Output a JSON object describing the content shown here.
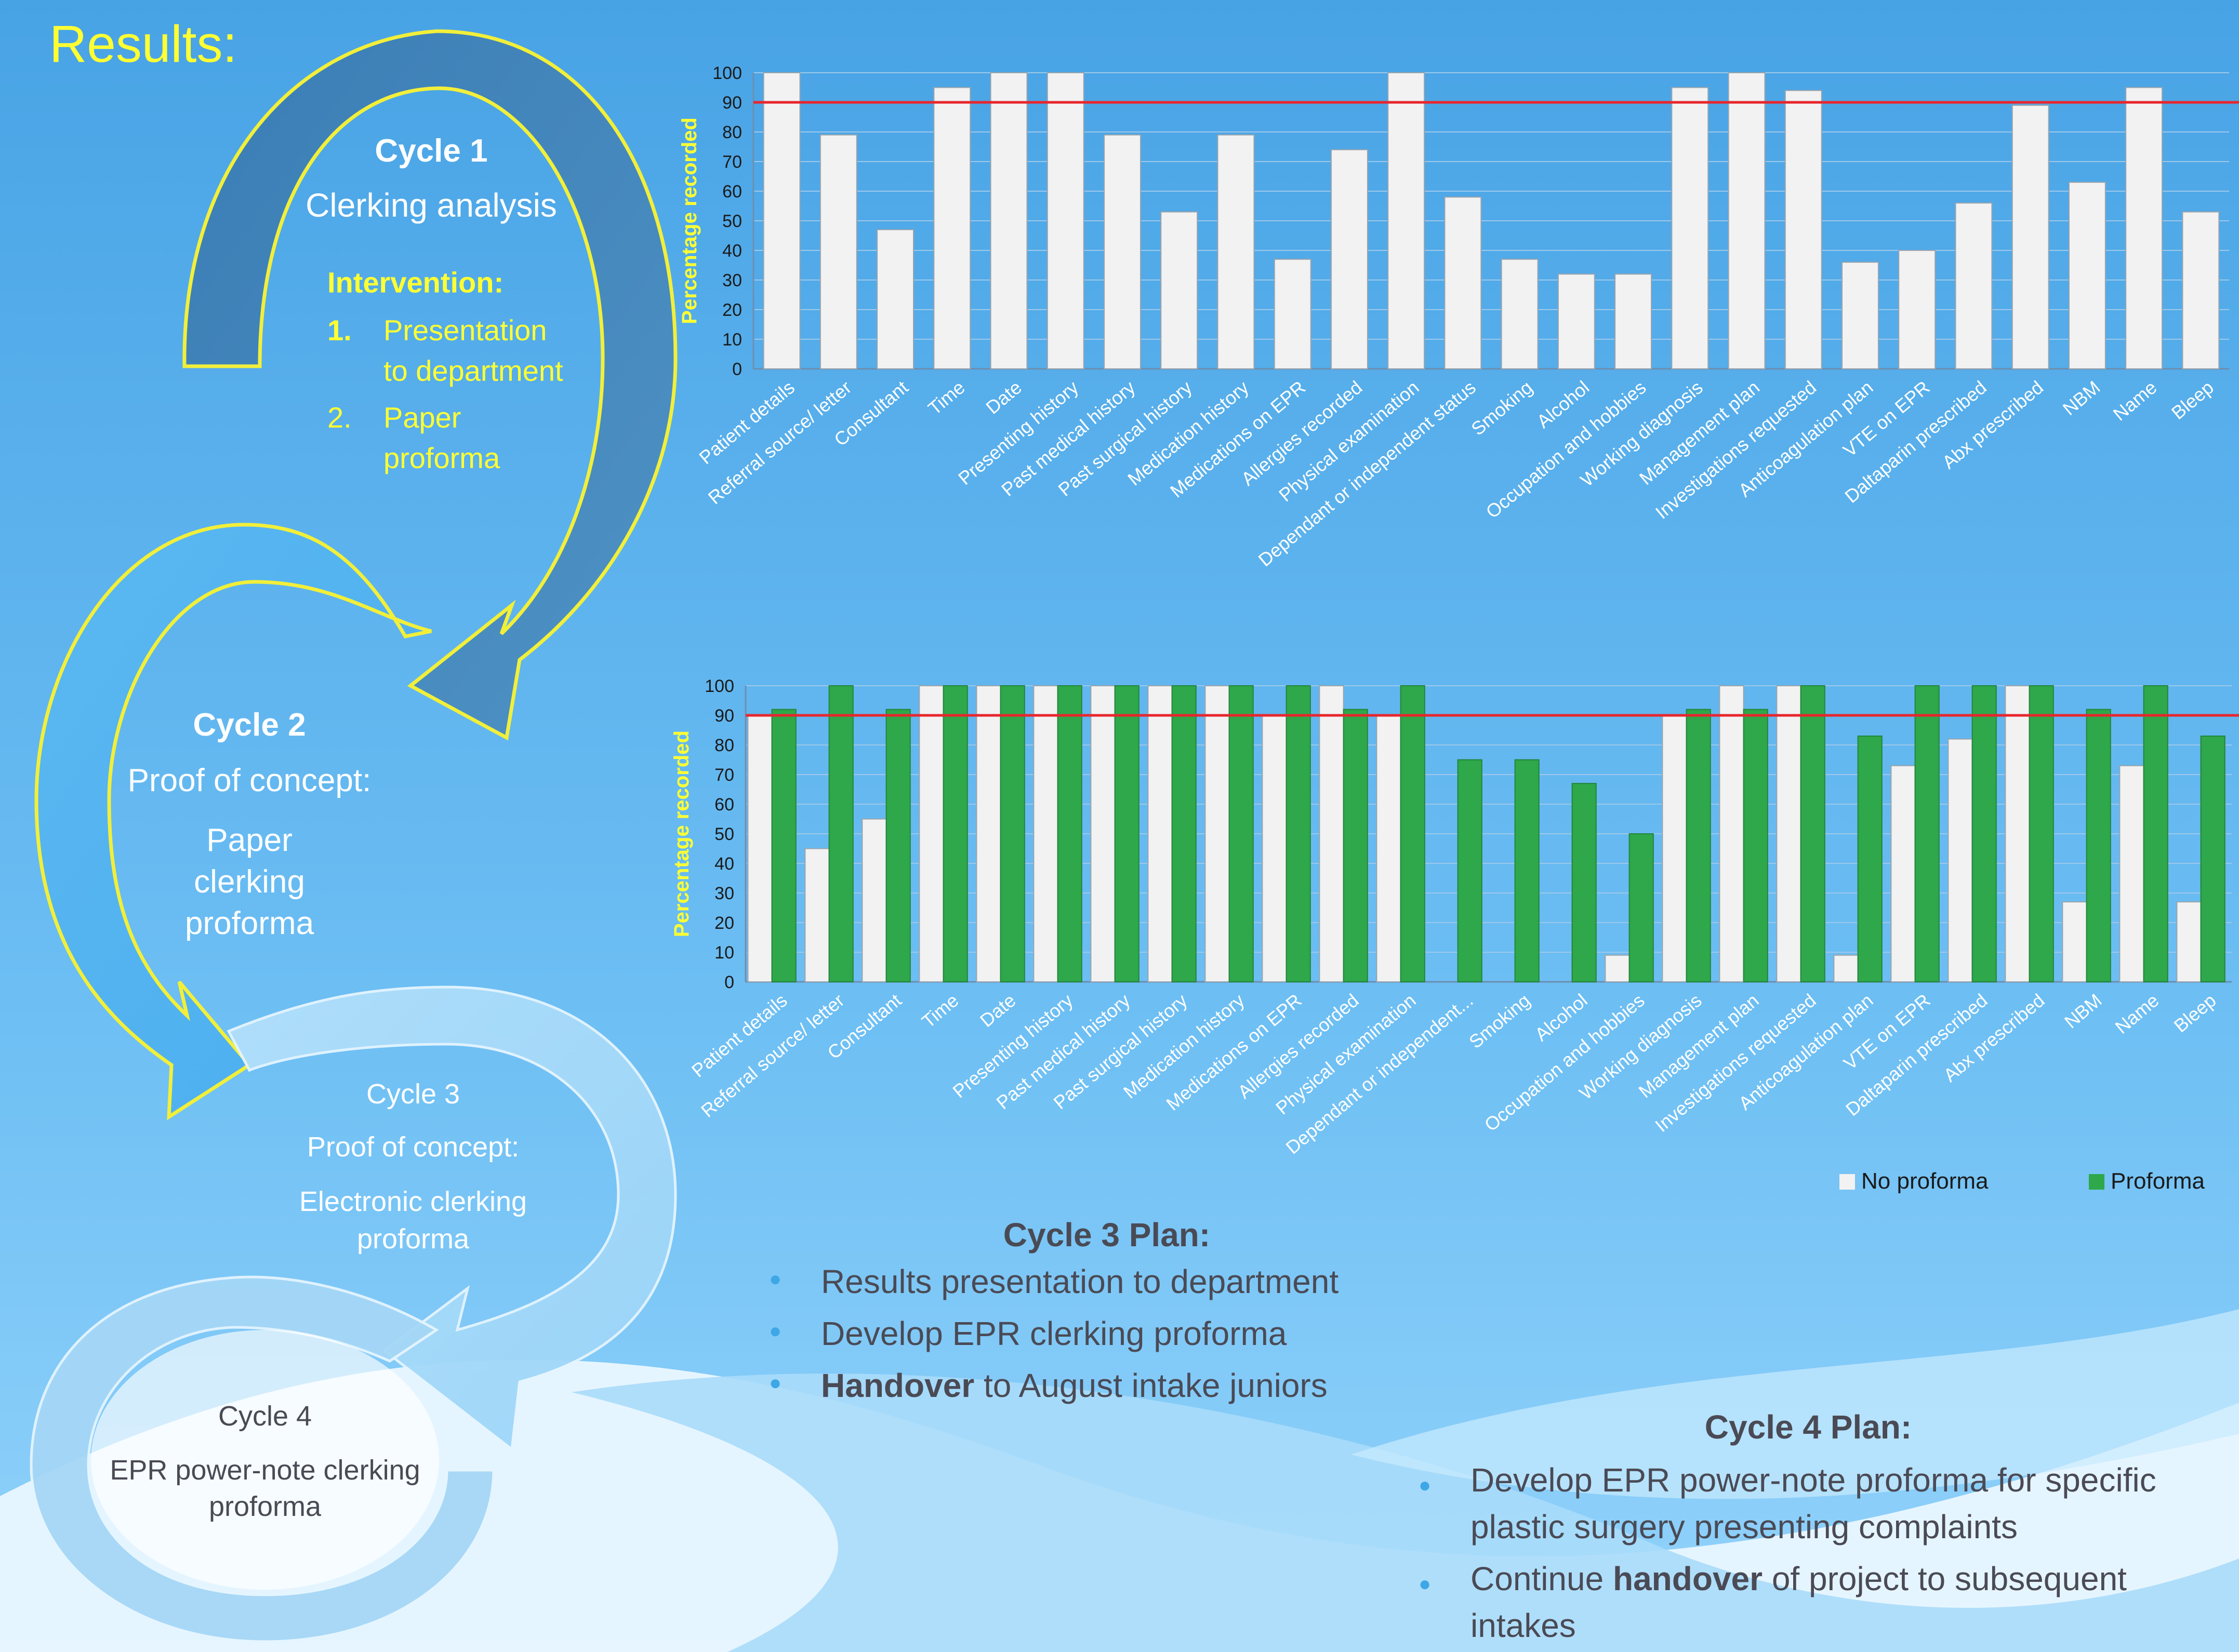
{
  "page": {
    "title": "Results:",
    "colors": {
      "bg_top": "#48a3e5",
      "bg_bottom": "#8fd0fb",
      "yellow": "#ffff33",
      "target_line": "#e8262d",
      "proforma_green": "#2ea84a",
      "bar_white": "#f2f2f2"
    }
  },
  "cycles": {
    "c1": {
      "heading": "Cycle 1",
      "sub": "Clerking analysis",
      "intervention_heading": "Intervention:",
      "items": [
        {
          "num": "1.",
          "text": "Presentation to department"
        },
        {
          "num": "2.",
          "text": "Paper proforma"
        }
      ]
    },
    "c2": {
      "heading": "Cycle 2",
      "line1": "Proof of concept:",
      "line2": "Paper clerking proforma"
    },
    "c3": {
      "heading": "Cycle 3",
      "line1": "Proof of concept:",
      "line2": "Electronic clerking proforma"
    },
    "c4": {
      "heading": "Cycle 4",
      "line1": "EPR power-note clerking proforma"
    }
  },
  "chart_data": [
    {
      "type": "bar",
      "ylabel": "Percentage recorded",
      "ylim": [
        0,
        100
      ],
      "yticks": [
        "0",
        "10",
        "20",
        "30",
        "40",
        "50",
        "60",
        "70",
        "80",
        "90",
        "100"
      ],
      "target_line": 90,
      "categories": [
        "Patient details",
        "Referral source/ letter",
        "Consultant",
        "Time",
        "Date",
        "Presenting history",
        "Past medical history",
        "Past surgical history",
        "Medication history",
        "Medications on EPR",
        "Allergies recorded",
        "Physical examination",
        "Dependant or independent status",
        "Smoking",
        "Alcohol",
        "Occupation and hobbies",
        "Working diagnosis",
        "Management plan",
        "Investigations requested",
        "Anticoagulation plan",
        "VTE on EPR",
        "Daltaparin prescribed",
        "Abx prescribed",
        "NBM",
        "Name",
        "Bleep"
      ],
      "values": [
        100,
        79,
        47,
        95,
        100,
        100,
        79,
        53,
        79,
        37,
        74,
        100,
        58,
        37,
        32,
        32,
        95,
        100,
        94,
        36,
        40,
        56,
        89,
        63,
        95,
        53
      ]
    },
    {
      "type": "bar",
      "ylabel": "Percentage recorded",
      "ylim": [
        0,
        100
      ],
      "yticks": [
        "0",
        "10",
        "20",
        "30",
        "40",
        "50",
        "60",
        "70",
        "80",
        "90",
        "100"
      ],
      "target_line": 90,
      "categories": [
        "Patient details",
        "Referral source/ letter",
        "Consultant",
        "Time",
        "Date",
        "Presenting history",
        "Past medical history",
        "Past surgical history",
        "Medication history",
        "Medications on EPR",
        "Allergies recorded",
        "Physical examination",
        "Dependant or independent...",
        "Smoking",
        "Alcohol",
        "Occupation and hobbies",
        "Working diagnosis",
        "Management plan",
        "Investigations requested",
        "Anticoagulation plan",
        "VTE on EPR",
        "Daltaparin prescribed",
        "Abx prescribed",
        "NBM",
        "Name",
        "Bleep"
      ],
      "series": [
        {
          "name": "No proforma",
          "values": [
            90,
            45,
            55,
            100,
            100,
            100,
            100,
            100,
            100,
            90,
            100,
            90,
            0,
            0,
            0,
            9,
            90,
            100,
            100,
            9,
            73,
            82,
            100,
            27,
            73,
            27
          ]
        },
        {
          "name": "Proforma",
          "values": [
            92,
            100,
            92,
            100,
            100,
            100,
            100,
            100,
            100,
            100,
            92,
            100,
            75,
            75,
            67,
            50,
            92,
            92,
            100,
            83,
            100,
            100,
            100,
            92,
            100,
            83
          ]
        }
      ],
      "legend": "bottom-right"
    }
  ],
  "plans": {
    "p3": {
      "heading": "Cycle 3 Plan:",
      "items": [
        {
          "pre": "",
          "bold": "",
          "post": "Results presentation to department"
        },
        {
          "pre": "",
          "bold": "",
          "post": "Develop EPR clerking proforma"
        },
        {
          "pre": "",
          "bold": "Handover",
          "post": " to August intake juniors"
        }
      ]
    },
    "p4": {
      "heading": "Cycle 4 Plan:",
      "items": [
        {
          "pre": "",
          "bold": "",
          "post": "Develop EPR power-note proforma for specific plastic surgery presenting complaints"
        },
        {
          "pre": "Continue ",
          "bold": "handover",
          "post": " of project to subsequent intakes"
        }
      ]
    }
  }
}
